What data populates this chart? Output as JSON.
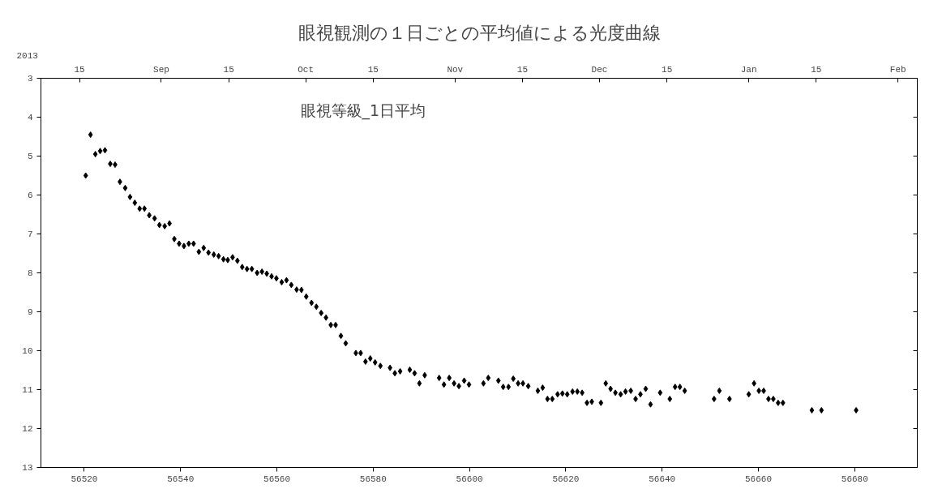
{
  "chart_data": {
    "type": "scatter",
    "title": "眼視観測の１日ごとの平均値による光度曲線",
    "annotations": [
      "眼視等級_1日平均",
      "2013"
    ],
    "x": [
      56520.3,
      56521.3,
      56522.3,
      56523.3,
      56524.3,
      56525.4,
      56526.4,
      56527.4,
      56528.5,
      56529.5,
      56530.5,
      56531.5,
      56532.5,
      56533.5,
      56534.6,
      56535.6,
      56536.7,
      56537.7,
      56538.7,
      56539.7,
      56540.7,
      56541.7,
      56542.7,
      56543.8,
      56544.8,
      56545.8,
      56546.9,
      56547.9,
      56548.9,
      56549.8,
      56550.8,
      56551.8,
      56552.8,
      56553.8,
      56554.8,
      56555.9,
      56556.9,
      56557.9,
      56558.9,
      56559.9,
      56561.0,
      56562.0,
      56563.0,
      56564.1,
      56565.1,
      56566.1,
      56567.2,
      56568.2,
      56569.2,
      56570.2,
      56571.2,
      56572.2,
      56573.3,
      56574.3,
      56576.4,
      56577.4,
      56578.4,
      56579.4,
      56580.4,
      56581.5,
      56583.5,
      56584.5,
      56585.6,
      56587.6,
      56588.6,
      56589.6,
      56590.7,
      56593.7,
      56594.7,
      56595.8,
      56596.8,
      56597.8,
      56598.9,
      56599.9,
      56602.9,
      56603.9,
      56606.0,
      56607.0,
      56608.1,
      56609.1,
      56610.1,
      56611.1,
      56612.2,
      56614.2,
      56615.2,
      56616.2,
      56617.2,
      56618.3,
      56619.3,
      56620.3,
      56621.4,
      56622.4,
      56623.4,
      56624.4,
      56625.4,
      56627.3,
      56628.3,
      56629.3,
      56630.3,
      56631.4,
      56632.4,
      56633.5,
      56634.5,
      56635.5,
      56636.6,
      56637.6,
      56639.6,
      56641.6,
      56642.7,
      56643.7,
      56644.7,
      56650.8,
      56651.9,
      56654.0,
      56658.0,
      56659.1,
      56660.1,
      56661.1,
      56662.1,
      56663.1,
      56664.1,
      56665.1,
      56671.1,
      56673.1,
      56680.3
    ],
    "series": [
      {
        "color": "#000000",
        "values": [
          5.5,
          4.45,
          4.95,
          4.87,
          4.85,
          5.2,
          5.22,
          5.66,
          5.82,
          6.05,
          6.2,
          6.35,
          6.35,
          6.52,
          6.6,
          6.77,
          6.8,
          6.73,
          7.13,
          7.25,
          7.31,
          7.25,
          7.25,
          7.46,
          7.36,
          7.48,
          7.53,
          7.57,
          7.65,
          7.67,
          7.6,
          7.69,
          7.85,
          7.9,
          7.9,
          8.0,
          7.97,
          8.02,
          8.09,
          8.14,
          8.24,
          8.19,
          8.31,
          8.43,
          8.44,
          8.61,
          8.77,
          8.87,
          9.03,
          9.15,
          9.34,
          9.34,
          9.62,
          9.81,
          10.06,
          10.06,
          10.28,
          10.2,
          10.3,
          10.39,
          10.44,
          10.58,
          10.53,
          10.49,
          10.58,
          10.84,
          10.63,
          10.7,
          10.87,
          10.7,
          10.84,
          10.91,
          10.77,
          10.87,
          10.84,
          10.7,
          10.77,
          10.93,
          10.93,
          10.72,
          10.84,
          10.84,
          10.91,
          11.03,
          10.95,
          11.24,
          11.24,
          11.12,
          11.1,
          11.12,
          11.05,
          11.05,
          11.08,
          11.34,
          11.31,
          11.34,
          10.84,
          10.98,
          11.08,
          11.12,
          11.05,
          11.03,
          11.24,
          11.12,
          10.98,
          11.38,
          11.08,
          11.24,
          10.93,
          10.93,
          11.03,
          11.24,
          11.03,
          11.24,
          11.12,
          10.84,
          11.03,
          11.03,
          11.24,
          11.24,
          11.34,
          11.34,
          11.53,
          11.53,
          11.53
        ]
      }
    ],
    "marker": "diamond",
    "grid": false,
    "xlim": [
      56511,
      56693
    ],
    "xticks": [
      56520,
      56540,
      56560,
      56580,
      56600,
      56620,
      56640,
      56660,
      56680
    ],
    "x2lim": [
      "2013-08-07",
      "2014-02-05"
    ],
    "x2ticks": [
      {
        "value": "2013-08-15",
        "label": "15"
      },
      {
        "value": "2013-09-01",
        "label": "Sep"
      },
      {
        "value": "2013-09-15",
        "label": "15"
      },
      {
        "value": "2013-10-01",
        "label": "Oct"
      },
      {
        "value": "2013-10-15",
        "label": "15"
      },
      {
        "value": "2013-11-01",
        "label": "Nov"
      },
      {
        "value": "2013-11-15",
        "label": "15"
      },
      {
        "value": "2013-12-01",
        "label": "Dec"
      },
      {
        "value": "2013-12-15",
        "label": "15"
      },
      {
        "value": "2014-01-01",
        "label": "Jan"
      },
      {
        "value": "2014-01-15",
        "label": "15"
      },
      {
        "value": "2014-02-01",
        "label": "Feb"
      }
    ],
    "ylim": [
      13,
      3
    ],
    "yticks": [
      3,
      4,
      5,
      6,
      7,
      8,
      9,
      10,
      11,
      12,
      13
    ]
  }
}
